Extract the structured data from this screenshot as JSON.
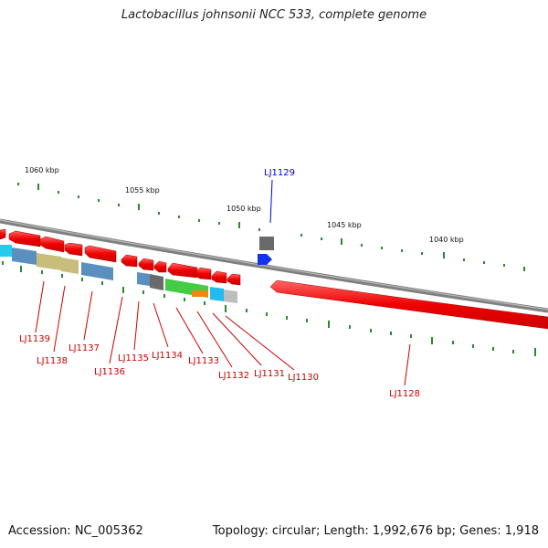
{
  "title": "Lactobacillus johnsonii NCC 533, complete genome",
  "footer": {
    "accession": "Accession: NC_005362",
    "summary": "Topology: circular; Length: 1,992,676 bp; Genes: 1,918"
  },
  "scale": {
    "ticks": [
      "1060 kbp",
      "1055 kbp",
      "1050 kbp",
      "1045 kbp",
      "1040 kbp"
    ]
  },
  "genes": {
    "LJ1129": "LJ1129",
    "LJ1139": "LJ1139",
    "LJ1138": "LJ1138",
    "LJ1137": "LJ1137",
    "LJ1136": "LJ1136",
    "LJ1135": "LJ1135",
    "LJ1134": "LJ1134",
    "LJ1133": "LJ1133",
    "LJ1132": "LJ1132",
    "LJ1131": "LJ1131",
    "LJ1130": "LJ1130",
    "LJ1128": "LJ1128"
  },
  "colors": {
    "gene": "#ee1111",
    "backbone": "#777777",
    "tick": "#2a8a2a",
    "label_red": "#cc0000",
    "label_blue": "#0000cc"
  }
}
